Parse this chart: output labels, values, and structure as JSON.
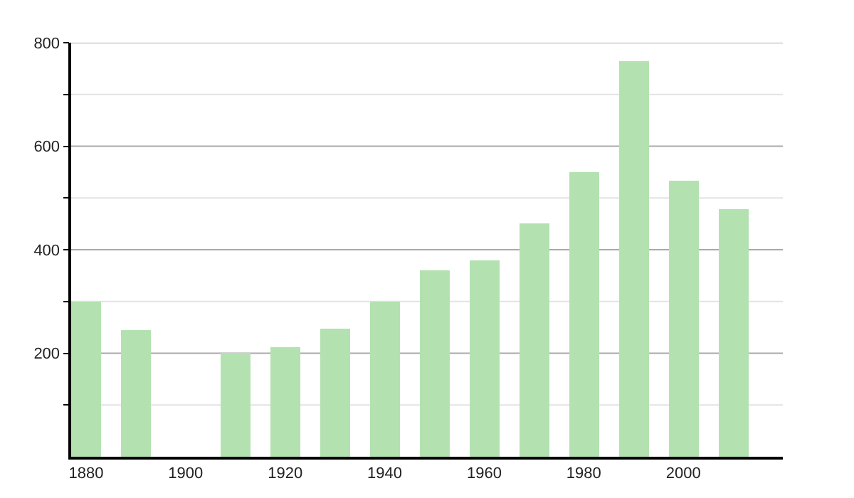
{
  "chart_data": {
    "type": "bar",
    "x": [
      1880,
      1890,
      1910,
      1920,
      1930,
      1940,
      1950,
      1960,
      1970,
      1980,
      1990,
      2000,
      2010
    ],
    "values": [
      300,
      245,
      200,
      212,
      248,
      300,
      361,
      379,
      452,
      551,
      763,
      532,
      479
    ],
    "color": "#b3e2b0",
    "xlim": [
      1877,
      2020
    ],
    "xticks": [
      1880,
      1900,
      1920,
      1940,
      1960,
      1980,
      2000
    ],
    "ylim": [
      0,
      800
    ],
    "yticks": [
      {
        "value": 100,
        "label": null
      },
      200,
      {
        "value": 300,
        "label": null
      },
      400,
      {
        "value": 500,
        "label": null
      },
      600,
      {
        "value": 700,
        "label": null
      },
      800
    ],
    "grid": "y"
  }
}
